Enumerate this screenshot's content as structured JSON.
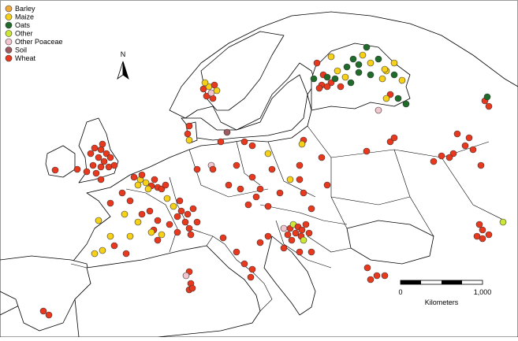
{
  "legend": {
    "items": [
      {
        "label": "Barley",
        "color": "#f2a93b"
      },
      {
        "label": "Maize",
        "color": "#f7d117"
      },
      {
        "label": "Oats",
        "color": "#1f6b2a"
      },
      {
        "label": "Other",
        "color": "#cde637"
      },
      {
        "label": "Other Poaceae",
        "color": "#f2c6cf"
      },
      {
        "label": "Soil",
        "color": "#9e5a5e"
      },
      {
        "label": "Wheat",
        "color": "#e8391f"
      }
    ]
  },
  "north_arrow": {
    "label": "N"
  },
  "scale_bar": {
    "start_label": "0",
    "end_label": "1,000",
    "unit_label": "Kilometers"
  }
}
